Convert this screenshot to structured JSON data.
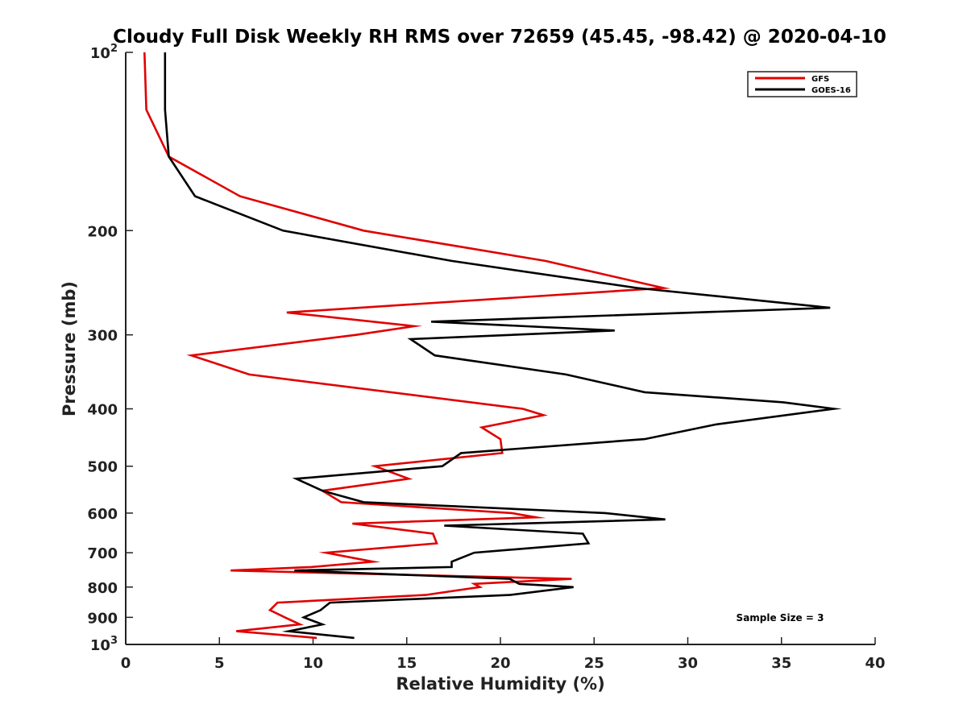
{
  "chart_data": {
    "type": "line",
    "title": "Cloudy Full Disk Weekly RH RMS over 72659 (45.45, -98.42) @ 2020-04-10",
    "xlabel": "Relative Humidity (%)",
    "ylabel": "Pressure (mb)",
    "xlim": [
      0,
      40
    ],
    "ylim": [
      100,
      1000
    ],
    "yscale": "log",
    "y_reversed": true,
    "grid": false,
    "legend_position": "top-right",
    "x_ticks": [
      "0",
      "5",
      "10",
      "15",
      "20",
      "25",
      "30",
      "35",
      "40"
    ],
    "y_ticks": [
      {
        "value": 100,
        "label": "10",
        "sup": "2"
      },
      {
        "value": 200,
        "label": "200"
      },
      {
        "value": 300,
        "label": "300"
      },
      {
        "value": 400,
        "label": "400"
      },
      {
        "value": 500,
        "label": "500"
      },
      {
        "value": 600,
        "label": "600"
      },
      {
        "value": 700,
        "label": "700"
      },
      {
        "value": 800,
        "label": "800"
      },
      {
        "value": 900,
        "label": "900"
      },
      {
        "value": 1000,
        "label": "10",
        "sup": "3"
      }
    ],
    "annotation": "Sample Size = 3",
    "series": [
      {
        "name": "GFS",
        "color": "#e00000",
        "points": [
          [
            1.0,
            100
          ],
          [
            1.1,
            125
          ],
          [
            2.3,
            150
          ],
          [
            6.1,
            175
          ],
          [
            12.7,
            200
          ],
          [
            22.4,
            225
          ],
          [
            28.7,
            250
          ],
          [
            8.6,
            275
          ],
          [
            15.4,
            290
          ],
          [
            12.3,
            300
          ],
          [
            3.5,
            325
          ],
          [
            6.6,
            350
          ],
          [
            21.2,
            400
          ],
          [
            22.3,
            410
          ],
          [
            19.0,
            430
          ],
          [
            20.0,
            450
          ],
          [
            20.1,
            475
          ],
          [
            13.3,
            500
          ],
          [
            15.1,
            525
          ],
          [
            10.5,
            550
          ],
          [
            11.5,
            575
          ],
          [
            20.6,
            600
          ],
          [
            21.9,
            610
          ],
          [
            12.1,
            625
          ],
          [
            16.4,
            650
          ],
          [
            16.6,
            675
          ],
          [
            10.7,
            700
          ],
          [
            13.2,
            725
          ],
          [
            9.9,
            740
          ],
          [
            5.6,
            750
          ],
          [
            23.8,
            775
          ],
          [
            18.6,
            790
          ],
          [
            18.9,
            800
          ],
          [
            16.0,
            825
          ],
          [
            8.1,
            850
          ],
          [
            7.7,
            875
          ],
          [
            8.5,
            900
          ],
          [
            9.3,
            925
          ],
          [
            5.9,
            950
          ],
          [
            10.2,
            975
          ]
        ]
      },
      {
        "name": "GOES-16",
        "color": "#000000",
        "points": [
          [
            2.1,
            100
          ],
          [
            2.1,
            125
          ],
          [
            2.3,
            150
          ],
          [
            3.7,
            175
          ],
          [
            8.4,
            200
          ],
          [
            17.4,
            225
          ],
          [
            27.3,
            250
          ],
          [
            37.6,
            270
          ],
          [
            16.3,
            285
          ],
          [
            26.1,
            295
          ],
          [
            15.2,
            305
          ],
          [
            16.5,
            325
          ],
          [
            23.5,
            350
          ],
          [
            27.7,
            375
          ],
          [
            35.1,
            390
          ],
          [
            37.8,
            400
          ],
          [
            31.5,
            425
          ],
          [
            27.7,
            450
          ],
          [
            17.9,
            475
          ],
          [
            16.9,
            500
          ],
          [
            9.1,
            525
          ],
          [
            10.5,
            550
          ],
          [
            12.7,
            575
          ],
          [
            25.6,
            600
          ],
          [
            28.8,
            615
          ],
          [
            17.0,
            630
          ],
          [
            24.4,
            650
          ],
          [
            24.7,
            675
          ],
          [
            18.6,
            700
          ],
          [
            17.4,
            725
          ],
          [
            17.4,
            740
          ],
          [
            9.0,
            750
          ],
          [
            20.5,
            775
          ],
          [
            21.0,
            790
          ],
          [
            23.9,
            800
          ],
          [
            20.5,
            825
          ],
          [
            10.9,
            850
          ],
          [
            10.4,
            875
          ],
          [
            9.5,
            900
          ],
          [
            10.5,
            925
          ],
          [
            8.7,
            950
          ],
          [
            12.2,
            975
          ]
        ]
      }
    ]
  }
}
